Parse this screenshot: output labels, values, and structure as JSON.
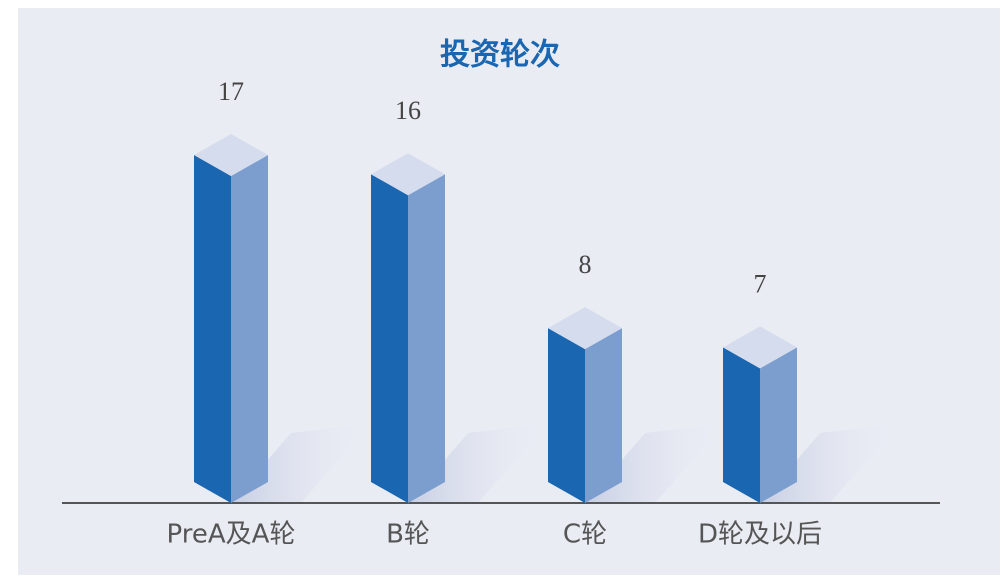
{
  "chart_data": {
    "type": "bar3d",
    "title": "投资轮次",
    "categories": [
      "PreA及A轮",
      "B轮",
      "C轮",
      "D轮及以后"
    ],
    "values": [
      17,
      16,
      8,
      7
    ],
    "color": "#1a66b0",
    "side_color": "#7b9ece",
    "top_color": "#d5dcee"
  }
}
